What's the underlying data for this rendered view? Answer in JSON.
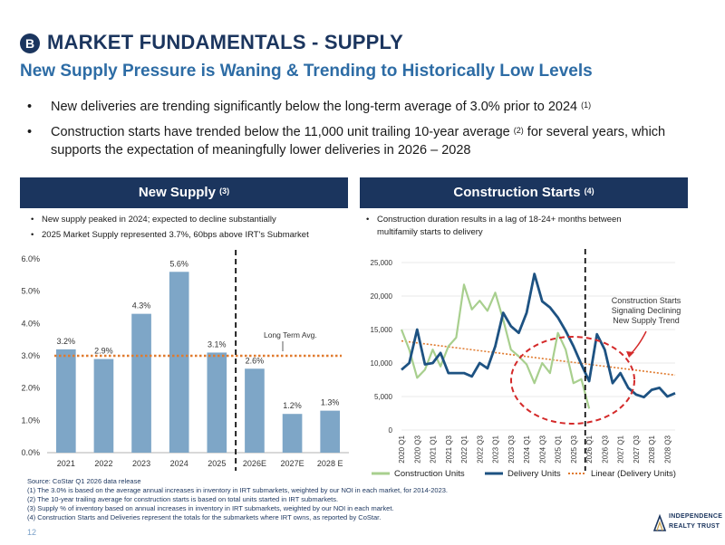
{
  "header": {
    "badge": "B",
    "title": "MARKET FUNDAMENTALS - SUPPLY",
    "subtitle": "New Supply Pressure is Waning & Trending to Historically Low Levels"
  },
  "bullets": [
    {
      "text": "New deliveries are trending significantly below the long-term average of 3.0% prior to 2024",
      "sup": "(1)",
      "tail": ""
    },
    {
      "text": "Construction starts have trended below the 11,000 unit trailing 10-year average",
      "sup": "(2)",
      "tail": " for several years, which supports the expectation of meaningfully lower deliveries in 2026 – 2028"
    }
  ],
  "left_panel": {
    "title": "New Supply",
    "sup": "(3)",
    "notes": [
      "New supply peaked in 2024; expected to decline substantially",
      "2025 Market Supply represented 3.7%, 60bps above IRT's Submarket"
    ]
  },
  "right_panel": {
    "title": "Construction Starts",
    "sup": "(4)",
    "notes": [
      "Construction duration results in a lag of 18-24+ months between multifamily starts to delivery"
    ]
  },
  "chart_data": [
    {
      "type": "bar",
      "categories": [
        "2021",
        "2022",
        "2023",
        "2024",
        "2025",
        "2026E",
        "2027E",
        "2028 E"
      ],
      "values": [
        3.2,
        2.9,
        4.3,
        5.6,
        3.1,
        2.6,
        1.2,
        1.3
      ],
      "value_labels": [
        "3.2%",
        "2.9%",
        "4.3%",
        "5.6%",
        "3.1%",
        "2.6%",
        "1.2%",
        "1.3%"
      ],
      "ylim": [
        0,
        6
      ],
      "yticks": [
        "0.0%",
        "1.0%",
        "2.0%",
        "3.0%",
        "4.0%",
        "5.0%",
        "6.0%"
      ],
      "reference_line": {
        "value": 3.0,
        "label": "Long Term Avg.",
        "color": "#e07a2e"
      },
      "bar_color": "#7ea6c7",
      "divider_after": "2025"
    },
    {
      "type": "line",
      "x": [
        "2020 Q1",
        "2020 Q2",
        "2020 Q3",
        "2020 Q4",
        "2021 Q1",
        "2021 Q2",
        "2021 Q3",
        "2021 Q4",
        "2022 Q1",
        "2022 Q2",
        "2022 Q3",
        "2022 Q4",
        "2023 Q1",
        "2023 Q2",
        "2023 Q3",
        "2023 Q4",
        "2024 Q1",
        "2024 Q2",
        "2024 Q3",
        "2024 Q4",
        "2025 Q1",
        "2025 Q2",
        "2025 Q3",
        "2025 Q4",
        "2026 Q1",
        "2026 Q2",
        "2026 Q3",
        "2026 Q4",
        "2027 Q1",
        "2027 Q2",
        "2027 Q3",
        "2027 Q4",
        "2028 Q1",
        "2028 Q2",
        "2028 Q3",
        "2028 Q4"
      ],
      "xtick_labels": [
        "2020 Q1",
        "2020 Q3",
        "2021 Q1",
        "2021 Q3",
        "2022 Q1",
        "2022 Q3",
        "2023 Q1",
        "2023 Q3",
        "2024 Q1",
        "2024 Q3",
        "2025 Q1",
        "2025 Q3",
        "2026 Q1",
        "2026 Q3",
        "2027 Q1",
        "2027 Q3",
        "2028 Q1",
        "2028 Q3"
      ],
      "yticks": [
        "0",
        "5,000",
        "10,000",
        "15,000",
        "20,000",
        "25,000"
      ],
      "ylim": [
        0,
        25000
      ],
      "series": [
        {
          "name": "Construction Units",
          "color": "#a8cf8e",
          "values": [
            15000,
            12000,
            7800,
            9000,
            12000,
            9500,
            12500,
            13800,
            21700,
            18000,
            19300,
            17800,
            20500,
            16500,
            12000,
            11000,
            9800,
            7000,
            10000,
            8500,
            14500,
            12000,
            7000,
            7600,
            3200,
            null,
            null,
            null,
            null,
            null,
            null,
            null,
            null,
            null,
            null,
            null
          ]
        },
        {
          "name": "Delivery Units",
          "color": "#1d5282",
          "values": [
            9000,
            10000,
            15000,
            9800,
            10000,
            11500,
            8500,
            8500,
            8500,
            8000,
            10000,
            9200,
            12500,
            17500,
            15500,
            14500,
            17500,
            23300,
            19200,
            18300,
            16800,
            14800,
            12500,
            9800,
            7300,
            14300,
            12000,
            7000,
            8500,
            6300,
            5300,
            4900,
            6000,
            6300,
            5000,
            5500
          ]
        },
        {
          "name": "Linear (Delivery Units)",
          "color": "#e07a2e",
          "trend": [
            13300,
            8200
          ]
        }
      ],
      "annotation": "Construction Starts Signaling Declining New Supply Trend",
      "divider_after": "2025 Q4"
    }
  ],
  "footnotes": {
    "source": "Source: CoStar Q1 2026 data release",
    "notes": [
      "(1)  The 3.0% is based on the average annual increases in inventory in IRT submarkets, weighted by our NOI in each market, for 2014-2023.",
      "(2)  The 10-year trailing average for construction starts is based on total units started in IRT submarkets.",
      "(3)  Supply % of inventory based on annual increases in inventory in IRT submarkets, weighted by our NOI in each market.",
      "(4)  Construction Starts and Deliveries represent the totals for the submarkets where IRT owns, as reported by CoStar."
    ]
  },
  "page_number": "12",
  "logo": {
    "line1": "INDEPENDENCE",
    "line2": "REALTY TRUST",
    "color": "#1b355e"
  }
}
